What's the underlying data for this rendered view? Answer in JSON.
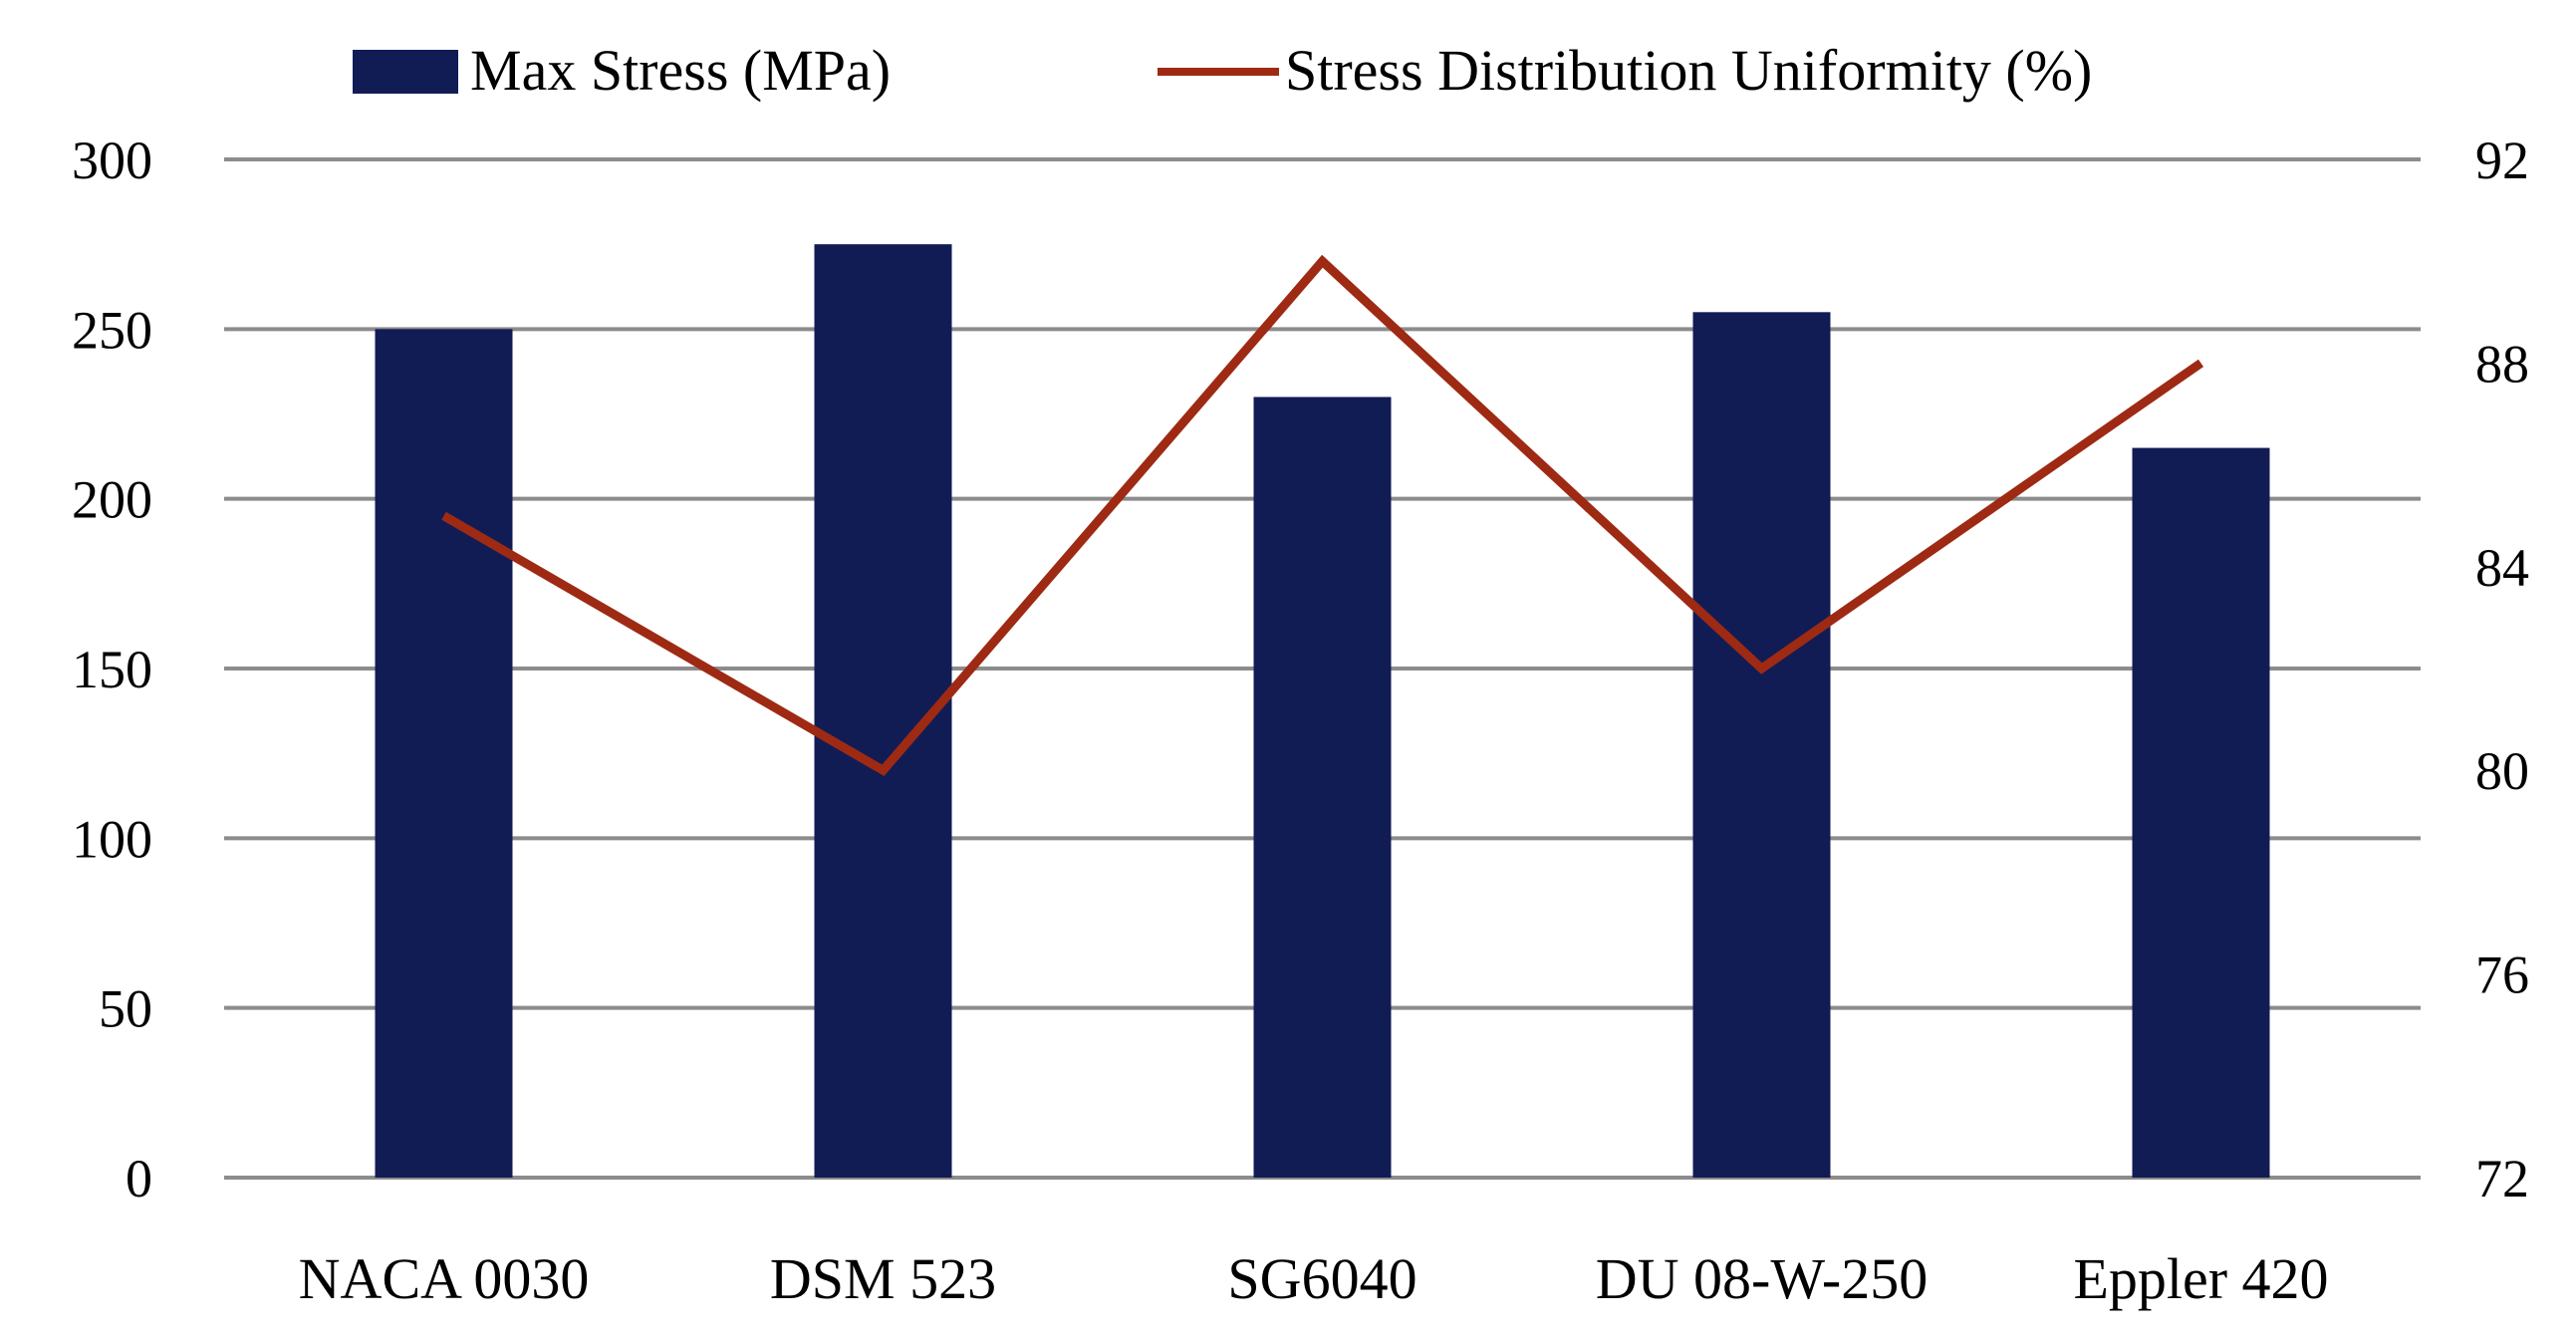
{
  "chart_data": {
    "type": "bar+line",
    "title": "",
    "categories": [
      "NACA 0030",
      "DSM 523",
      "SG6040",
      "DU 08-W-250",
      "Eppler 420"
    ],
    "series": [
      {
        "name": "Max Stress (MPa)",
        "type": "bar",
        "axis": "left",
        "color": "#111c55",
        "values": [
          250,
          275,
          230,
          255,
          215
        ]
      },
      {
        "name": "Stress Distribution Uniformity (%)",
        "type": "line",
        "axis": "right",
        "color": "#9e2a14",
        "values": [
          85,
          80,
          90,
          82,
          88
        ]
      }
    ],
    "left_axis": {
      "min": 0,
      "max": 300,
      "step": 50,
      "ticks": [
        "0",
        "50",
        "100",
        "150",
        "200",
        "250",
        "300"
      ]
    },
    "right_axis": {
      "min": 72,
      "max": 92,
      "step": 4,
      "ticks": [
        "72",
        "76",
        "80",
        "84",
        "88",
        "92"
      ]
    },
    "grid": true,
    "grid_color": "#8c8c8c",
    "legend_position": "top"
  }
}
